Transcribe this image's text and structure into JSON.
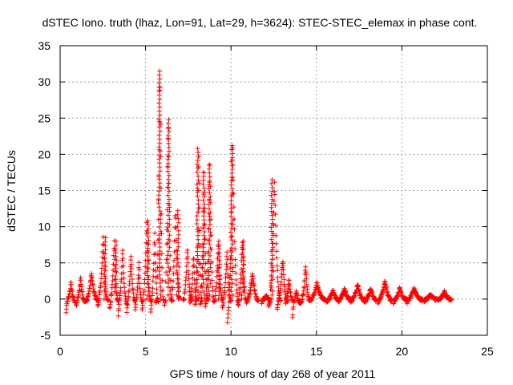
{
  "chart_data": {
    "type": "scatter",
    "title": "dSTEC Iono. truth (lhaz, Lon=91, Lat=29, h=3624): STEC-STEC_elemax in phase cont.",
    "xlabel": "GPS time / hours of day 268 of year 2011",
    "ylabel": "dSTEC  / TECUs",
    "xlim": [
      0,
      25
    ],
    "ylim": [
      -5,
      35
    ],
    "xticks": [
      0,
      5,
      10,
      15,
      20,
      25
    ],
    "yticks": [
      -5,
      0,
      5,
      10,
      15,
      20,
      25,
      30,
      35
    ],
    "grid": true,
    "marker": "+",
    "marker_color": "#ff0000",
    "series": [
      {
        "name": "dSTEC",
        "arcs": [
          {
            "start": 0.35,
            "end": 0.9,
            "min": -2.0,
            "max": 2.2
          },
          {
            "start": 0.95,
            "end": 1.45,
            "min": -1.2,
            "max": 3.0
          },
          {
            "start": 1.5,
            "end": 2.2,
            "min": -0.5,
            "max": 3.5
          },
          {
            "start": 2.2,
            "end": 2.8,
            "min": -1.0,
            "max": 8.5
          },
          {
            "start": 2.9,
            "end": 3.4,
            "min": -1.5,
            "max": 8.0
          },
          {
            "start": 3.4,
            "end": 3.9,
            "min": -2.5,
            "max": 7.0
          },
          {
            "start": 3.9,
            "end": 4.4,
            "min": -2.0,
            "max": 6.0
          },
          {
            "start": 4.4,
            "end": 4.8,
            "min": -1.5,
            "max": 5.0
          },
          {
            "start": 4.8,
            "end": 5.3,
            "min": -1.5,
            "max": 10.8
          },
          {
            "start": 5.3,
            "end": 5.75,
            "min": -2.0,
            "max": 9.0
          },
          {
            "start": 5.6,
            "end": 6.05,
            "min": -0.5,
            "max": 31.5
          },
          {
            "start": 6.1,
            "end": 6.55,
            "min": -1.0,
            "max": 24.8
          },
          {
            "start": 6.5,
            "end": 7.0,
            "min": 0.0,
            "max": 12.2
          },
          {
            "start": 7.2,
            "end": 7.7,
            "min": 0.0,
            "max": 7.0
          },
          {
            "start": 7.6,
            "end": 8.0,
            "min": -0.5,
            "max": 6.0
          },
          {
            "start": 7.9,
            "end": 8.3,
            "min": -1.0,
            "max": 20.8
          },
          {
            "start": 8.2,
            "end": 8.65,
            "min": -1.0,
            "max": 17.5
          },
          {
            "start": 8.5,
            "end": 9.0,
            "min": -1.0,
            "max": 18.5
          },
          {
            "start": 9.0,
            "end": 9.5,
            "min": -0.5,
            "max": 8.0
          },
          {
            "start": 9.5,
            "end": 10.0,
            "min": -1.5,
            "max": 6.5
          },
          {
            "start": 9.8,
            "end": 10.45,
            "min": -3.5,
            "max": 21.2
          },
          {
            "start": 10.4,
            "end": 10.9,
            "min": -0.5,
            "max": 8.0
          },
          {
            "start": 10.9,
            "end": 11.6,
            "min": -0.5,
            "max": 3.5
          },
          {
            "start": 11.8,
            "end": 12.3,
            "min": -0.5,
            "max": 0.5
          },
          {
            "start": 12.2,
            "end": 12.9,
            "min": -1.0,
            "max": 16.5
          },
          {
            "start": 12.7,
            "end": 13.3,
            "min": -1.5,
            "max": 5.5
          },
          {
            "start": 13.2,
            "end": 13.6,
            "min": -0.5,
            "max": 3.0
          },
          {
            "start": 13.6,
            "end": 14.1,
            "min": -3.0,
            "max": 1.0
          },
          {
            "start": 14.1,
            "end": 14.6,
            "min": -0.5,
            "max": 4.5
          },
          {
            "start": 14.6,
            "end": 15.5,
            "min": -0.3,
            "max": 2.2
          },
          {
            "start": 15.6,
            "end": 16.3,
            "min": -0.5,
            "max": 1.2
          },
          {
            "start": 16.3,
            "end": 17.0,
            "min": -0.3,
            "max": 1.5
          },
          {
            "start": 17.0,
            "end": 17.8,
            "min": -0.5,
            "max": 2.0
          },
          {
            "start": 17.8,
            "end": 18.5,
            "min": -0.5,
            "max": 1.5
          },
          {
            "start": 18.6,
            "end": 19.4,
            "min": -0.5,
            "max": 2.5
          },
          {
            "start": 19.5,
            "end": 20.3,
            "min": -0.5,
            "max": 1.5
          },
          {
            "start": 20.3,
            "end": 21.2,
            "min": -0.5,
            "max": 1.5
          },
          {
            "start": 21.3,
            "end": 22.1,
            "min": -0.3,
            "max": 0.6
          },
          {
            "start": 22.1,
            "end": 22.9,
            "min": -0.3,
            "max": 1.0
          }
        ],
        "peaks": [
          {
            "x": 5.82,
            "y": 31.5
          },
          {
            "x": 6.35,
            "y": 24.8
          },
          {
            "x": 10.05,
            "y": 21.2
          },
          {
            "x": 8.05,
            "y": 20.8
          },
          {
            "x": 8.75,
            "y": 18.5
          },
          {
            "x": 8.4,
            "y": 17.5
          },
          {
            "x": 12.4,
            "y": 16.5
          },
          {
            "x": 6.9,
            "y": 12.2
          },
          {
            "x": 5.15,
            "y": 10.8
          },
          {
            "x": 2.65,
            "y": 8.5
          },
          {
            "x": 3.25,
            "y": 8.0
          },
          {
            "x": 10.7,
            "y": 8.0
          },
          {
            "x": 9.3,
            "y": 8.0
          }
        ]
      }
    ]
  }
}
